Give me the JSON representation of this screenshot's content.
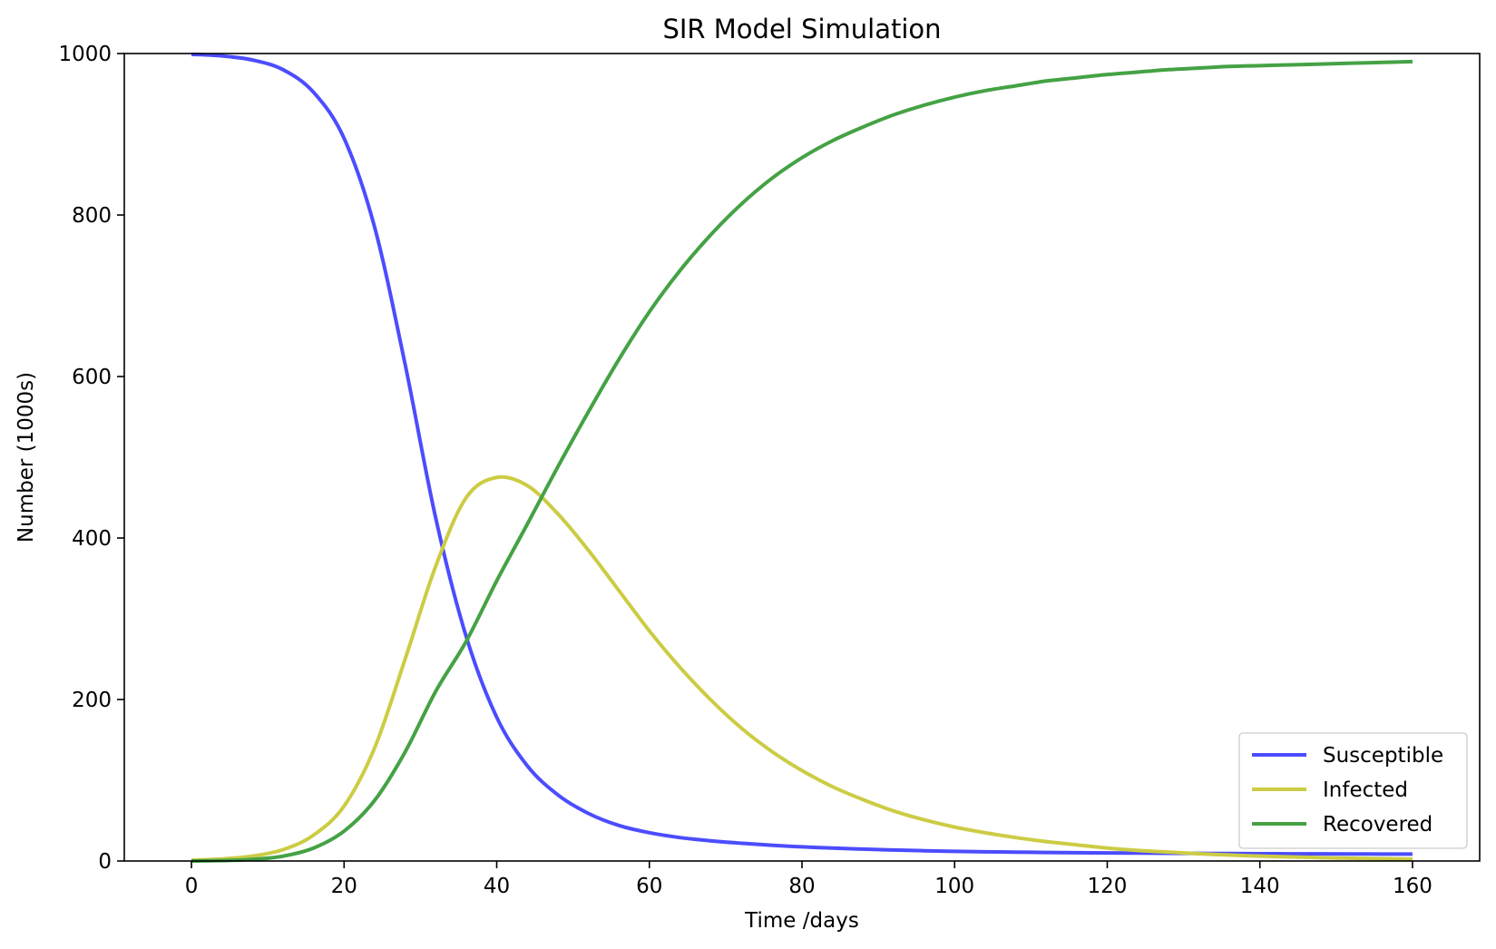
{
  "chart_data": {
    "type": "line",
    "title": "SIR Model Simulation",
    "xlabel": "Time /days",
    "ylabel": "Number (1000s)",
    "xlim": [
      -8.8,
      168.8
    ],
    "ylim": [
      0,
      1000
    ],
    "xticks": [
      0,
      20,
      40,
      60,
      80,
      100,
      120,
      140,
      160
    ],
    "yticks": [
      0,
      200,
      400,
      600,
      800,
      1000
    ],
    "grid": false,
    "legend_position": "lower right",
    "x": [
      0,
      4,
      8,
      12,
      16,
      20,
      24,
      28,
      32,
      36,
      40,
      44,
      48,
      52,
      56,
      60,
      64,
      68,
      72,
      76,
      80,
      84,
      88,
      92,
      96,
      100,
      104,
      108,
      112,
      116,
      120,
      124,
      128,
      132,
      136,
      140,
      144,
      148,
      152,
      156,
      160
    ],
    "series": [
      {
        "name": "Susceptible",
        "color": "#4c4cff",
        "values": [
          999,
          997,
          992,
          980,
          952,
          895,
          785,
          615,
          425,
          278,
          178,
          118,
          82,
          59,
          44,
          35,
          29,
          25,
          22,
          19.5,
          17.5,
          16,
          14.7,
          13.6,
          12.7,
          12,
          11.4,
          11,
          10.6,
          10.3,
          10,
          9.8,
          9.6,
          9.4,
          9.2,
          9,
          8.9,
          8.8,
          8.7,
          8.6,
          8.5
        ]
      },
      {
        "name": "Infected",
        "color": "#cccc44",
        "values": [
          1,
          2.5,
          6,
          14,
          32,
          68,
          140,
          250,
          365,
          450,
          475,
          465,
          430,
          385,
          335,
          285,
          240,
          200,
          165,
          136,
          112,
          92,
          76,
          62,
          51,
          42,
          35,
          29,
          24,
          20,
          16,
          13,
          11,
          9,
          7.4,
          6,
          5,
          4.1,
          3.4,
          2.8,
          2.3
        ]
      },
      {
        "name": "Recovered",
        "color": "#44a244",
        "values": [
          0,
          0.5,
          2,
          6,
          16,
          37,
          75,
          135,
          210,
          272,
          347,
          417,
          488,
          556,
          621,
          680,
          731,
          775,
          813,
          845,
          871,
          892,
          909,
          924,
          936,
          946,
          954,
          960,
          966,
          970,
          974,
          977,
          980,
          982,
          984,
          985,
          986,
          987,
          988,
          989,
          990
        ]
      }
    ]
  }
}
